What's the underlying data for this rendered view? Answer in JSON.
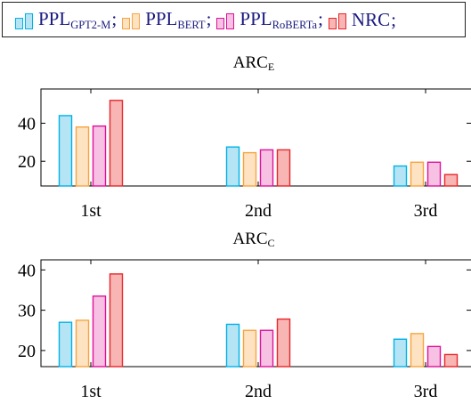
{
  "legend": [
    {
      "base": "PPL",
      "sub": "GPT2-M",
      "sep": ";",
      "color": "#00b2e8",
      "fill": "#b5e5f5"
    },
    {
      "base": "PPL",
      "sub": "BERT",
      "sep": ";",
      "color": "#f7a440",
      "fill": "#fde3c2"
    },
    {
      "base": "PPL",
      "sub": "RoBERTa",
      "sep": ";",
      "color": "#e0119a",
      "fill": "#f6c1e3"
    },
    {
      "base": "NRC",
      "sub": "",
      "sep": ";",
      "color": "#e8262a",
      "fill": "#f7b5b3"
    }
  ],
  "chart_data": [
    {
      "type": "bar",
      "title": "ARC",
      "title_sub": "E",
      "categories": [
        "1st",
        "2nd",
        "3rd"
      ],
      "yticks": [
        20,
        40
      ],
      "ylim": [
        7,
        58
      ],
      "series": [
        {
          "name": "PPL GPT2-M",
          "values": [
            44,
            27.5,
            17.5
          ]
        },
        {
          "name": "PPL BERT",
          "values": [
            38,
            24.5,
            19.5
          ]
        },
        {
          "name": "PPL RoBERTa",
          "values": [
            38.5,
            26,
            19.5
          ]
        },
        {
          "name": "NRC",
          "values": [
            52,
            26,
            13
          ]
        }
      ]
    },
    {
      "type": "bar",
      "title": "ARC",
      "title_sub": "C",
      "categories": [
        "1st",
        "2nd",
        "3rd"
      ],
      "yticks": [
        20,
        30,
        40
      ],
      "ylim": [
        16,
        42.5
      ],
      "series": [
        {
          "name": "PPL GPT2-M",
          "values": [
            27,
            26.5,
            22.8
          ]
        },
        {
          "name": "PPL BERT",
          "values": [
            27.5,
            25,
            24.2
          ]
        },
        {
          "name": "PPL RoBERTa",
          "values": [
            33.5,
            25,
            21
          ]
        },
        {
          "name": "NRC",
          "values": [
            39,
            27.8,
            19
          ]
        }
      ]
    }
  ]
}
